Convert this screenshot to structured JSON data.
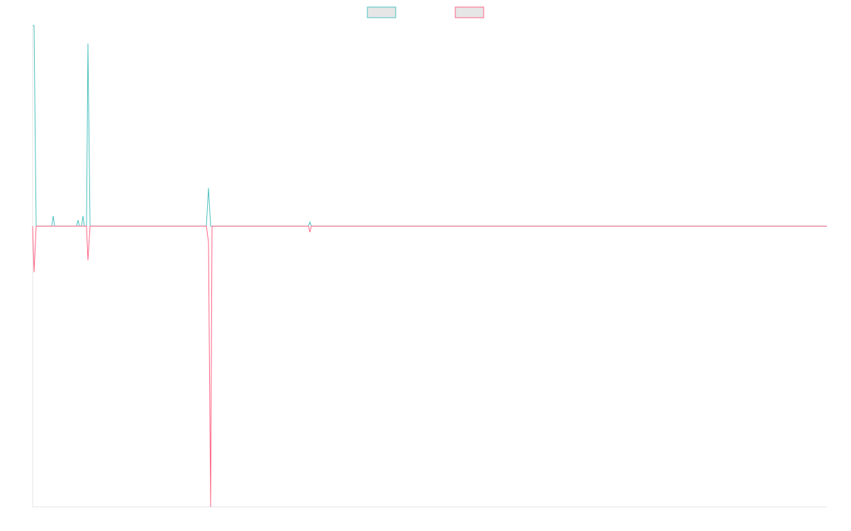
{
  "chart_data": {
    "type": "line",
    "x": [
      0,
      2,
      5,
      27,
      29,
      31,
      62,
      64,
      66,
      69,
      71,
      73,
      76,
      78,
      81,
      245,
      248,
      251,
      253,
      389,
      391,
      393,
      1120
    ],
    "series": [
      {
        "color": "#4bc0c0",
        "values": [
          100,
          100,
          0,
          0,
          5,
          0,
          0,
          3,
          0,
          0,
          5,
          0,
          0,
          91,
          0,
          0,
          19,
          0,
          0,
          0,
          2,
          0,
          0
        ]
      },
      {
        "color": "#ff6384",
        "values": [
          0,
          -23,
          0,
          0,
          0,
          0,
          0,
          0,
          0,
          0,
          0,
          0,
          0,
          -17,
          0,
          0,
          -8,
          -140,
          0,
          0,
          -3,
          0,
          0
        ]
      }
    ],
    "xlim": [
      0,
      1120
    ],
    "ylim": [
      -140,
      100
    ],
    "legend": "top"
  }
}
